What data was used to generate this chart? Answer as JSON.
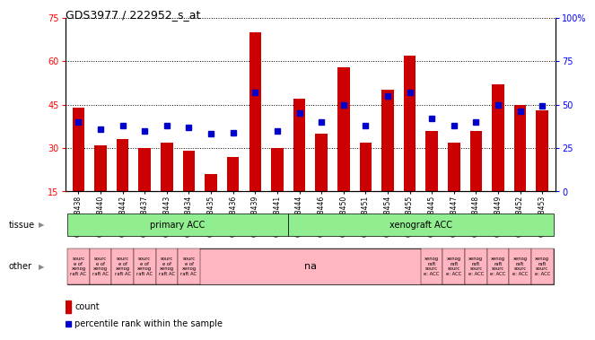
{
  "title": "GDS3977 / 222952_s_at",
  "samples": [
    "GSM718438",
    "GSM718440",
    "GSM718442",
    "GSM718437",
    "GSM718443",
    "GSM718434",
    "GSM718435",
    "GSM718436",
    "GSM718439",
    "GSM718441",
    "GSM718444",
    "GSM718446",
    "GSM718450",
    "GSM718451",
    "GSM718454",
    "GSM718455",
    "GSM718445",
    "GSM718447",
    "GSM718448",
    "GSM718449",
    "GSM718452",
    "GSM718453"
  ],
  "counts": [
    44,
    31,
    33,
    30,
    32,
    29,
    21,
    27,
    70,
    30,
    47,
    35,
    58,
    32,
    50,
    62,
    36,
    32,
    36,
    52,
    45,
    43
  ],
  "percentiles": [
    40,
    36,
    38,
    35,
    38,
    37,
    33,
    34,
    57,
    35,
    45,
    40,
    50,
    38,
    55,
    57,
    42,
    38,
    40,
    50,
    46,
    49
  ],
  "ylim_left": [
    15,
    75
  ],
  "ylim_right": [
    0,
    100
  ],
  "yticks_left": [
    15,
    30,
    45,
    60,
    75
  ],
  "yticks_right": [
    0,
    25,
    50,
    75,
    100
  ],
  "bar_color": "#CC0000",
  "dot_color": "#0000CC",
  "n_primary": 10,
  "n_xenograft": 12,
  "primary_label": "primary ACC",
  "xenograft_label": "xenograft ACC",
  "group_color": "#90EE90",
  "other_color": "#FFB6C1",
  "n_primary_other": 6,
  "n_na": 10,
  "n_xenograft_other": 6,
  "primary_other_label": "sourc\ne of\nxenog\nraft AC",
  "na_label": "na",
  "xenograft_other_label": "xenog\nraft\nsourc\ne: ACC",
  "legend_count_color": "#CC0000",
  "legend_pct_color": "#0000CC",
  "tissue_label": "tissue",
  "other_label": "other",
  "bar_bg_color": "#D3D3D3"
}
